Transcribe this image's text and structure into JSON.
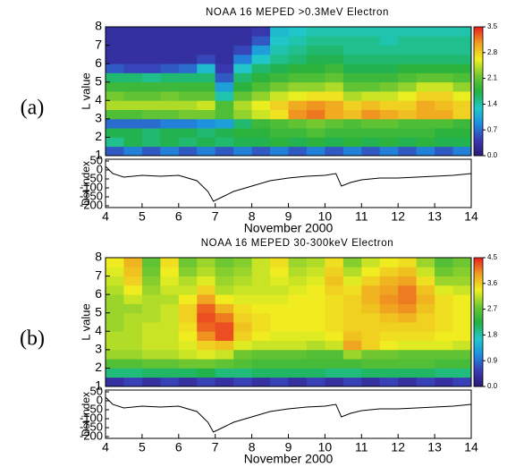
{
  "chart_data": [
    {
      "type": "heatmap",
      "panel_label": "(a)",
      "title": "NOAA 16 MEPED >0.3MeV Electron",
      "ylabel": "L value",
      "x": [
        4.25,
        4.75,
        5.25,
        5.75,
        6.25,
        6.75,
        7.25,
        7.75,
        8.25,
        8.75,
        9.25,
        9.75,
        10.25,
        10.75,
        11.25,
        11.75,
        12.25,
        12.75,
        13.25,
        13.75
      ],
      "y": [
        1.25,
        1.75,
        2.25,
        2.75,
        3.25,
        3.75,
        4.25,
        4.75,
        5.25,
        5.75,
        6.25,
        6.75,
        7.25,
        7.75
      ],
      "z": [
        [
          0.6,
          0.8,
          0.6,
          0.8,
          0.6,
          0.8,
          0.6,
          0.8,
          0.6,
          0.8,
          0.6,
          0.8,
          0.6,
          0.8,
          0.6,
          0.8,
          0.6,
          0.8,
          0.6,
          0.8
        ],
        [
          1.5,
          1.7,
          1.6,
          1.7,
          1.6,
          1.7,
          1.6,
          1.7,
          1.7,
          1.8,
          1.7,
          1.8,
          1.7,
          1.8,
          1.7,
          1.8,
          1.7,
          1.8,
          1.7,
          1.7
        ],
        [
          1.7,
          1.7,
          1.6,
          1.7,
          1.7,
          1.6,
          1.7,
          1.8,
          1.8,
          1.9,
          1.9,
          2.0,
          1.9,
          1.9,
          1.9,
          1.9,
          1.9,
          1.9,
          1.8,
          1.8
        ],
        [
          0.7,
          0.7,
          0.7,
          0.8,
          0.8,
          0.9,
          1.0,
          1.6,
          1.9,
          2.0,
          2.1,
          2.2,
          2.1,
          2.0,
          2.1,
          2.1,
          2.0,
          2.0,
          2.0,
          1.9
        ],
        [
          2.0,
          2.0,
          2.1,
          2.1,
          2.2,
          2.2,
          2.0,
          2.3,
          2.5,
          2.7,
          3.1,
          3.2,
          3.0,
          2.9,
          3.1,
          3.0,
          2.9,
          3.0,
          3.0,
          2.8
        ],
        [
          2.4,
          2.4,
          2.4,
          2.4,
          2.4,
          2.5,
          2.0,
          2.4,
          2.6,
          2.8,
          3.0,
          3.1,
          3.0,
          2.8,
          2.9,
          2.8,
          2.8,
          3.0,
          2.9,
          2.8
        ],
        [
          2.2,
          2.1,
          2.1,
          2.2,
          2.1,
          2.1,
          1.4,
          2.1,
          2.3,
          2.5,
          2.6,
          2.7,
          2.7,
          2.4,
          2.5,
          2.5,
          2.6,
          2.8,
          2.8,
          2.6
        ],
        [
          1.9,
          1.9,
          1.9,
          1.9,
          1.9,
          1.9,
          1.0,
          1.8,
          2.0,
          2.2,
          2.3,
          2.3,
          2.4,
          2.1,
          2.1,
          2.2,
          2.3,
          2.5,
          2.5,
          2.3
        ],
        [
          1.6,
          1.6,
          1.5,
          1.6,
          1.6,
          1.6,
          0.6,
          1.6,
          1.8,
          1.9,
          2.0,
          2.0,
          2.1,
          1.9,
          1.9,
          1.9,
          2.0,
          2.1,
          2.1,
          2.0
        ],
        [
          0.6,
          0.5,
          0.5,
          0.6,
          0.7,
          1.2,
          0.4,
          1.3,
          1.6,
          1.7,
          1.8,
          1.8,
          1.9,
          1.7,
          1.7,
          1.7,
          1.8,
          1.8,
          1.8,
          1.8
        ],
        [
          0.3,
          0.3,
          0.3,
          0.3,
          0.3,
          0.5,
          0.3,
          0.8,
          1.3,
          1.5,
          1.6,
          1.7,
          1.7,
          1.6,
          1.6,
          1.6,
          1.6,
          1.6,
          1.6,
          1.6
        ],
        [
          0.3,
          0.3,
          0.3,
          0.3,
          0.3,
          0.3,
          0.3,
          0.5,
          1.0,
          1.4,
          1.5,
          1.6,
          1.6,
          1.5,
          1.5,
          1.5,
          1.5,
          1.5,
          1.5,
          1.5
        ],
        [
          0.3,
          0.3,
          0.3,
          0.3,
          0.3,
          0.3,
          0.3,
          0.3,
          0.6,
          1.3,
          1.4,
          1.5,
          1.5,
          1.5,
          1.5,
          1.4,
          1.5,
          1.5,
          1.5,
          1.5
        ],
        [
          0.3,
          0.3,
          0.3,
          0.3,
          0.3,
          0.3,
          0.3,
          0.3,
          0.4,
          1.2,
          1.3,
          1.4,
          1.4,
          1.4,
          1.4,
          1.4,
          1.4,
          1.4,
          1.4,
          1.4
        ]
      ],
      "xlim": [
        4,
        14
      ],
      "ylim": [
        1,
        8
      ],
      "yticks": [
        1,
        2,
        3,
        4,
        5,
        6,
        7,
        8
      ],
      "zlim": [
        0,
        3.5
      ],
      "zticks": [
        {
          "value": 0,
          "label": "0.0"
        },
        0.7,
        1.4,
        2.1,
        2.8,
        3.5
      ],
      "colorscale": [
        "#2a1a70",
        "#3a3ab4",
        "#1e8ee0",
        "#20c8c8",
        "#22b040",
        "#70c830",
        "#f0f020",
        "#f0a020",
        "#e82020"
      ]
    },
    {
      "type": "line",
      "ylabel": "Dst index",
      "xlabel": "November 2000",
      "color": "#000000",
      "x": [
        4,
        4.2,
        4.5,
        5,
        5.5,
        6,
        6.5,
        6.8,
        6.95,
        7.2,
        7.5,
        8,
        8.5,
        9,
        9.5,
        10,
        10.3,
        10.45,
        10.7,
        11,
        11.5,
        12,
        12.5,
        13,
        13.5,
        14
      ],
      "values": [
        20,
        -20,
        -40,
        -30,
        -35,
        -30,
        -60,
        -120,
        -175,
        -150,
        -120,
        -90,
        -60,
        -45,
        -35,
        -30,
        -20,
        -90,
        -70,
        -55,
        -45,
        -45,
        -40,
        -35,
        -30,
        -20
      ],
      "xlim": [
        4,
        14
      ],
      "xticks": [
        4,
        5,
        6,
        7,
        8,
        9,
        10,
        11,
        12,
        13,
        14
      ],
      "ylim": [
        -210,
        60
      ],
      "yticks": [
        50,
        0,
        -50,
        -100,
        -150,
        -200
      ]
    },
    {
      "type": "heatmap",
      "panel_label": "(b)",
      "title": "NOAA 16 MEPED 30-300keV Electron",
      "ylabel": "L value",
      "x": [
        4.25,
        4.75,
        5.25,
        5.75,
        6.25,
        6.75,
        7.25,
        7.75,
        8.25,
        8.75,
        9.25,
        9.75,
        10.25,
        10.75,
        11.25,
        11.75,
        12.25,
        12.75,
        13.25,
        13.75
      ],
      "y": [
        1.25,
        1.75,
        2.25,
        2.75,
        3.25,
        3.75,
        4.25,
        4.75,
        5.25,
        5.75,
        6.25,
        6.75,
        7.25,
        7.75
      ],
      "z": [
        [
          0.4,
          0.6,
          0.4,
          0.6,
          0.4,
          0.6,
          0.4,
          0.6,
          0.4,
          0.6,
          0.4,
          0.6,
          0.4,
          0.6,
          0.4,
          0.6,
          0.4,
          0.6,
          0.4,
          0.6
        ],
        [
          2.0,
          2.0,
          2.1,
          2.1,
          2.1,
          2.2,
          2.0,
          2.0,
          2.1,
          2.1,
          2.1,
          2.1,
          2.0,
          2.0,
          2.1,
          2.1,
          2.1,
          2.1,
          2.0,
          2.0
        ],
        [
          2.6,
          2.6,
          2.7,
          2.7,
          2.8,
          2.8,
          2.7,
          2.6,
          2.5,
          2.5,
          2.5,
          2.5,
          2.5,
          2.5,
          2.6,
          2.6,
          2.6,
          2.6,
          2.5,
          2.5
        ],
        [
          3.0,
          3.0,
          3.1,
          3.1,
          3.2,
          3.3,
          3.2,
          2.8,
          2.7,
          2.7,
          2.7,
          2.6,
          2.6,
          3.0,
          2.8,
          2.8,
          2.7,
          2.7,
          2.7,
          2.7
        ],
        [
          3.1,
          3.1,
          3.2,
          3.2,
          3.3,
          3.6,
          3.7,
          3.3,
          3.2,
          3.2,
          3.2,
          3.1,
          3.2,
          3.9,
          3.6,
          3.4,
          3.3,
          3.3,
          3.3,
          3.2
        ],
        [
          3.1,
          3.1,
          3.2,
          3.2,
          3.4,
          4.0,
          4.3,
          3.6,
          3.4,
          3.3,
          3.3,
          3.3,
          3.4,
          3.7,
          3.6,
          3.5,
          3.5,
          3.5,
          3.4,
          3.4
        ],
        [
          3.0,
          3.1,
          3.2,
          3.2,
          3.5,
          4.2,
          4.3,
          3.7,
          3.5,
          3.4,
          3.4,
          3.4,
          3.5,
          3.6,
          3.6,
          3.6,
          3.6,
          3.6,
          3.5,
          3.4
        ],
        [
          3.0,
          3.1,
          3.1,
          3.2,
          3.6,
          4.3,
          4.1,
          3.6,
          3.5,
          3.4,
          3.4,
          3.4,
          3.5,
          3.6,
          3.6,
          3.7,
          3.8,
          3.6,
          3.5,
          3.4
        ],
        [
          3.0,
          3.0,
          3.1,
          3.2,
          3.6,
          4.2,
          3.8,
          3.5,
          3.4,
          3.4,
          3.4,
          3.4,
          3.5,
          3.6,
          3.7,
          3.9,
          4.0,
          3.7,
          3.5,
          3.4
        ],
        [
          3.0,
          3.2,
          3.1,
          3.1,
          3.4,
          3.9,
          3.4,
          3.3,
          3.3,
          3.3,
          3.4,
          3.4,
          3.5,
          3.6,
          3.8,
          4.0,
          4.1,
          3.8,
          3.5,
          3.4
        ],
        [
          3.1,
          3.4,
          3.0,
          3.2,
          3.2,
          3.6,
          3.1,
          3.2,
          3.2,
          3.2,
          3.3,
          3.4,
          3.6,
          3.5,
          3.8,
          3.9,
          4.1,
          3.7,
          3.3,
          3.2
        ],
        [
          3.2,
          3.6,
          2.9,
          3.3,
          3.1,
          3.3,
          3.0,
          3.1,
          3.2,
          3.3,
          3.2,
          3.3,
          3.7,
          3.3,
          3.6,
          3.8,
          3.9,
          3.5,
          3.0,
          3.0
        ],
        [
          3.3,
          3.7,
          2.8,
          3.4,
          2.9,
          3.1,
          2.9,
          3.0,
          3.2,
          3.4,
          3.1,
          3.2,
          3.6,
          3.1,
          3.4,
          3.6,
          3.7,
          3.2,
          2.8,
          2.9
        ],
        [
          3.4,
          3.8,
          2.7,
          3.5,
          2.8,
          3.0,
          2.8,
          2.9,
          3.2,
          3.5,
          3.0,
          3.1,
          3.5,
          2.9,
          3.2,
          3.4,
          3.5,
          3.0,
          2.6,
          2.8
        ]
      ],
      "xlim": [
        4,
        14
      ],
      "ylim": [
        1,
        8
      ],
      "yticks": [
        1,
        2,
        3,
        4,
        5,
        6,
        7,
        8
      ],
      "zlim": [
        0,
        4.5
      ],
      "zticks": [
        {
          "value": 0,
          "label": "0.0"
        },
        0.9,
        1.8,
        2.7,
        3.6,
        4.5
      ],
      "colorscale": [
        "#2a1a70",
        "#3a3ab4",
        "#1e8ee0",
        "#20c8c8",
        "#22b040",
        "#70c830",
        "#f0f020",
        "#f0a020",
        "#e82020"
      ]
    },
    {
      "type": "line",
      "ylabel": "Dst index",
      "xlabel": "November 2000",
      "color": "#000000",
      "x": [
        4,
        4.2,
        4.5,
        5,
        5.5,
        6,
        6.5,
        6.8,
        6.95,
        7.2,
        7.5,
        8,
        8.5,
        9,
        9.5,
        10,
        10.3,
        10.45,
        10.7,
        11,
        11.5,
        12,
        12.5,
        13,
        13.5,
        14
      ],
      "values": [
        20,
        -20,
        -40,
        -30,
        -35,
        -30,
        -60,
        -120,
        -175,
        -150,
        -120,
        -90,
        -60,
        -45,
        -35,
        -30,
        -20,
        -90,
        -70,
        -55,
        -45,
        -45,
        -40,
        -35,
        -30,
        -20
      ],
      "xlim": [
        4,
        14
      ],
      "xticks": [
        4,
        5,
        6,
        7,
        8,
        9,
        10,
        11,
        12,
        13,
        14
      ],
      "ylim": [
        -210,
        60
      ],
      "yticks": [
        50,
        0,
        -50,
        -100,
        -150,
        -200
      ]
    }
  ]
}
